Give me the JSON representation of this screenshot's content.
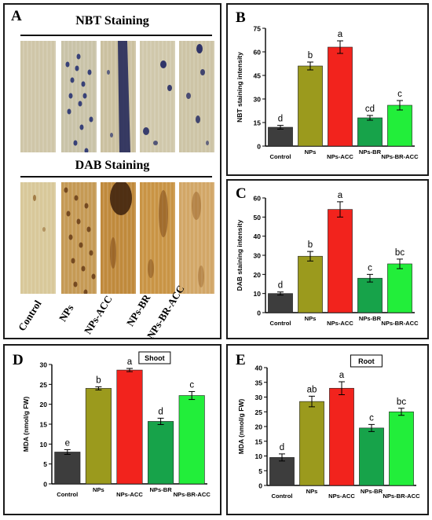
{
  "panel_a": {
    "letter": "A",
    "nbt_title": "NBT Staining",
    "dab_title": "DAB Staining",
    "treatments": [
      "Control",
      "NPs",
      "NPs-ACC",
      "NPs-BR",
      "NPs-BR-ACC"
    ]
  },
  "chart_data": [
    {
      "panel": "B",
      "type": "bar",
      "categories": [
        "Control",
        "NPs",
        "NPs-ACC",
        "NPs-BR",
        "NPs-BR-ACC"
      ],
      "values": [
        12,
        51,
        63,
        18,
        26
      ],
      "errors": [
        1.2,
        2.5,
        4,
        1.5,
        3
      ],
      "letters": [
        "d",
        "b",
        "a",
        "cd",
        "c"
      ],
      "ylabel": "NBT staining intensity",
      "ylim": [
        0,
        75
      ],
      "yticks": [
        "0",
        "15",
        "30",
        "45",
        "60",
        "75"
      ],
      "colors": [
        "#3d3d3d",
        "#9b9a1d",
        "#f2231d",
        "#17a34a",
        "#22ee3a"
      ],
      "inset_label": ""
    },
    {
      "panel": "C",
      "type": "bar",
      "categories": [
        "Control",
        "NPs",
        "NPs-ACC",
        "NPs-BR",
        "NPs-BR-ACC"
      ],
      "values": [
        10,
        29.5,
        54,
        18,
        25.5
      ],
      "errors": [
        0.8,
        2.5,
        4,
        2,
        2.5
      ],
      "letters": [
        "d",
        "b",
        "a",
        "c",
        "bc"
      ],
      "ylabel": "DAB staining intensity",
      "ylim": [
        0,
        60
      ],
      "yticks": [
        "0",
        "10",
        "20",
        "30",
        "40",
        "50",
        "60"
      ],
      "colors": [
        "#3d3d3d",
        "#9b9a1d",
        "#f2231d",
        "#17a34a",
        "#22ee3a"
      ],
      "inset_label": ""
    },
    {
      "panel": "D",
      "type": "bar",
      "categories": [
        "Control",
        "NPs",
        "NPs-ACC",
        "NPs-BR",
        "NPs-BR-ACC"
      ],
      "values": [
        8,
        24,
        28.6,
        15.7,
        22.2
      ],
      "errors": [
        0.6,
        0.4,
        0.4,
        0.8,
        1
      ],
      "letters": [
        "e",
        "b",
        "a",
        "d",
        "c"
      ],
      "ylabel": "MDA (nmol/g FW)",
      "ylim": [
        0,
        30
      ],
      "yticks": [
        "0",
        "5",
        "10",
        "15",
        "20",
        "25",
        "30"
      ],
      "colors": [
        "#3d3d3d",
        "#9b9a1d",
        "#f2231d",
        "#17a34a",
        "#22ee3a"
      ],
      "inset_label": "Shoot"
    },
    {
      "panel": "E",
      "type": "bar",
      "categories": [
        "Control",
        "NPs",
        "NPs-ACC",
        "NPs-BR",
        "NPs-BR-ACC"
      ],
      "values": [
        9.5,
        28.5,
        33,
        19.5,
        25
      ],
      "errors": [
        1.2,
        1.8,
        2.2,
        1.2,
        1.2
      ],
      "letters": [
        "d",
        "ab",
        "a",
        "c",
        "bc"
      ],
      "ylabel": "MDA (nmol/g FW)",
      "ylim": [
        0,
        40
      ],
      "yticks": [
        "0",
        "5",
        "10",
        "15",
        "20",
        "25",
        "30",
        "35",
        "40"
      ],
      "colors": [
        "#3d3d3d",
        "#9b9a1d",
        "#f2231d",
        "#17a34a",
        "#22ee3a"
      ],
      "inset_label": "Root"
    }
  ]
}
